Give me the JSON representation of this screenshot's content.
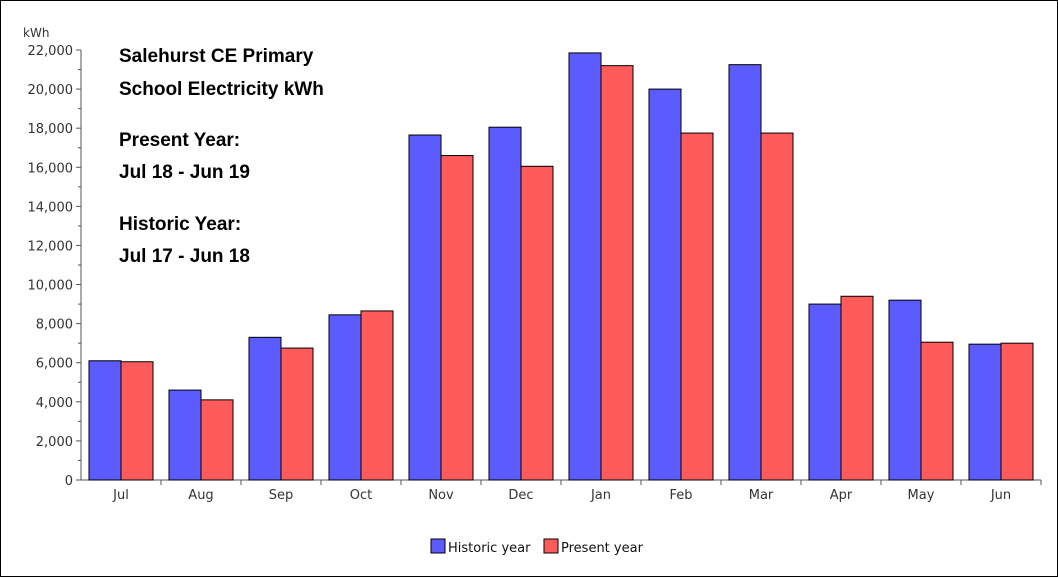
{
  "chart_data": {
    "type": "bar",
    "title_lines": [
      "Salehurst CE Primary",
      "School Electricity kWh",
      "Present Year:",
      "Jul 18 - Jun 19",
      "Historic Year:",
      "Jul 17 - Jun 18"
    ],
    "ylabel": "kWh",
    "ylim": [
      0,
      22000
    ],
    "ytick_labels": [
      "0",
      "2,000",
      "4,000",
      "6,000",
      "8,000",
      "10,000",
      "12,000",
      "14,000",
      "16,000",
      "18,000",
      "20,000",
      "22,000"
    ],
    "categories": [
      "Jul",
      "Aug",
      "Sep",
      "Oct",
      "Nov",
      "Dec",
      "Jan",
      "Feb",
      "Mar",
      "Apr",
      "May",
      "Jun"
    ],
    "series": [
      {
        "name": "Historic year",
        "color": "#5b5bff",
        "values": [
          6100,
          4600,
          7300,
          8450,
          17650,
          18050,
          21850,
          20000,
          21250,
          9000,
          9200,
          6950
        ]
      },
      {
        "name": "Present year",
        "color": "#ff5b5b",
        "values": [
          6050,
          4100,
          6750,
          8650,
          16600,
          16050,
          21200,
          17750,
          17750,
          9400,
          7050,
          7000
        ]
      }
    ],
    "grid": false,
    "legend_position": "bottom-center"
  }
}
